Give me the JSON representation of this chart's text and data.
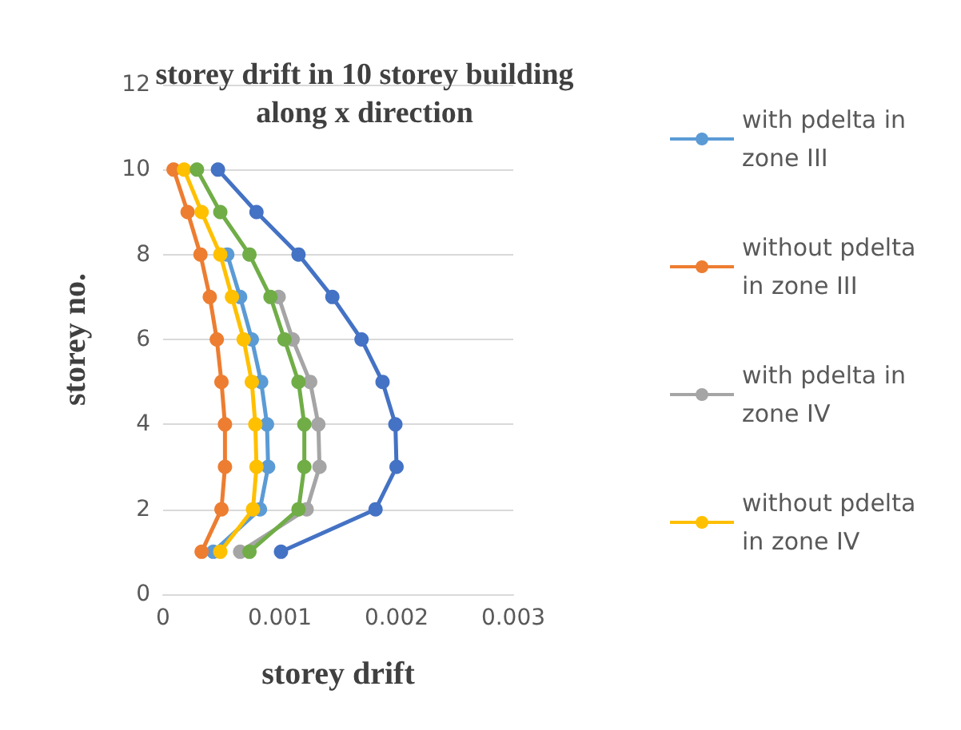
{
  "chart_data": {
    "type": "line",
    "title": "storey drift in 10 storey building\nalong x direction",
    "xlabel": "storey drift",
    "ylabel": "storey no.",
    "xlim": [
      0,
      0.003
    ],
    "xticks": [
      0,
      0.001,
      0.002,
      0.003
    ],
    "ylim": [
      0,
      12
    ],
    "yticks": [
      0,
      2,
      4,
      6,
      8,
      10,
      12
    ],
    "grid": "y",
    "legend": "right",
    "marker": "circle",
    "series": [
      {
        "name": "with pdelta in zone III",
        "color": "#5b9bd5",
        "x": [
          0.00043,
          0.00083,
          0.0009,
          0.00089,
          0.00084,
          0.00076,
          0.00066,
          0.00055,
          null,
          null
        ],
        "values": [
          1,
          2,
          3,
          4,
          5,
          6,
          7,
          8,
          null,
          null
        ]
      },
      {
        "name": "without pdelta in zone III",
        "color": "#ed7d31",
        "x": [
          0.00033,
          0.0005,
          0.00053,
          0.00053,
          0.0005,
          0.00046,
          0.0004,
          0.00032,
          0.00021,
          9e-05
        ],
        "values": [
          1,
          2,
          3,
          4,
          5,
          6,
          7,
          8,
          9,
          10
        ]
      },
      {
        "name": "with pdelta in zone IV",
        "color": "#a5a5a5",
        "x": [
          0.00066,
          0.00123,
          0.00134,
          0.00133,
          0.00126,
          0.00111,
          0.00099,
          null,
          null,
          null
        ],
        "values": [
          1,
          2,
          3,
          4,
          5,
          6,
          7,
          null,
          null,
          null
        ]
      },
      {
        "name": "without pdelta in zone IV",
        "color": "#ffc000",
        "x": [
          0.00049,
          0.00077,
          0.0008,
          0.00079,
          0.00076,
          0.00069,
          0.00059,
          0.00049,
          0.00033,
          0.00018
        ],
        "values": [
          1,
          2,
          3,
          4,
          5,
          6,
          7,
          8,
          9,
          10
        ]
      },
      {
        "color": "#4472c4",
        "x": [
          0.00101,
          0.00182,
          0.002,
          0.00199,
          0.00188,
          0.0017,
          0.00145,
          0.00116,
          0.0008,
          0.00047
        ],
        "values": [
          1,
          2,
          3,
          4,
          5,
          6,
          7,
          8,
          9,
          10
        ]
      },
      {
        "color": "#70ad47",
        "x": [
          0.00074,
          0.00116,
          0.00121,
          0.00121,
          0.00116,
          0.00104,
          0.00092,
          0.00074,
          0.00049,
          0.00029
        ],
        "values": [
          1,
          2,
          3,
          4,
          5,
          6,
          7,
          8,
          9,
          10
        ]
      }
    ]
  }
}
